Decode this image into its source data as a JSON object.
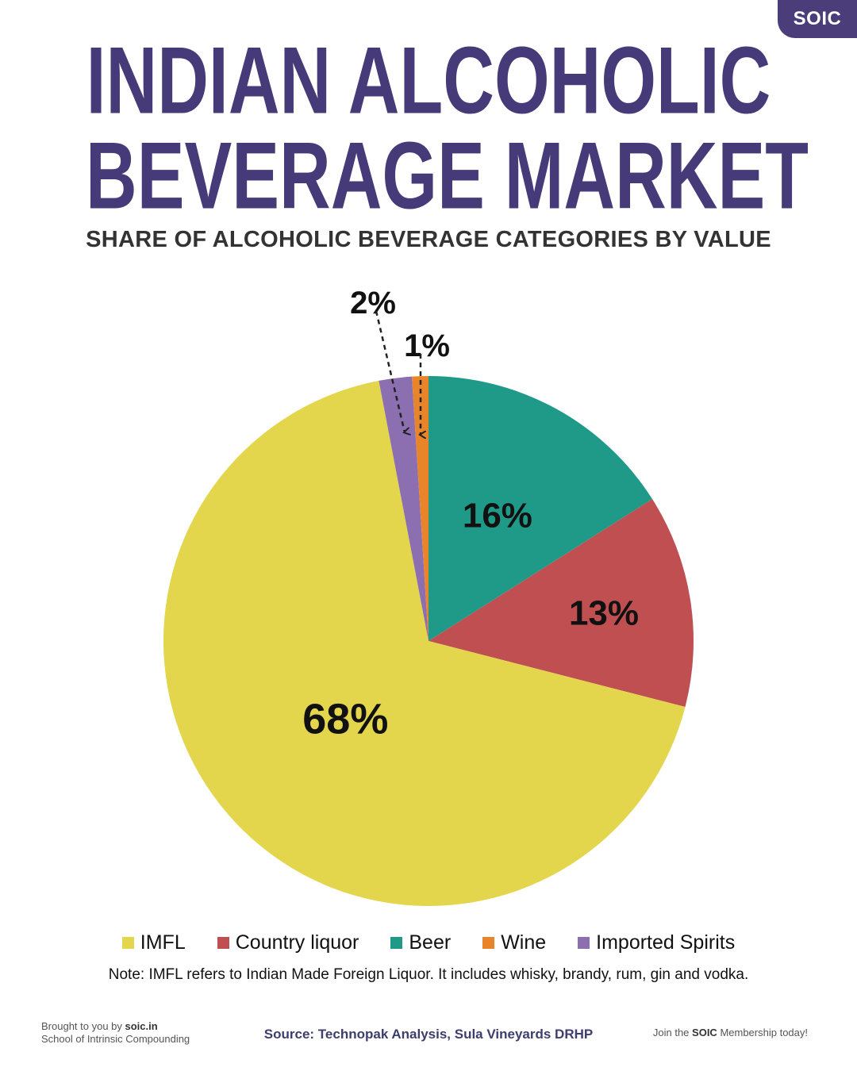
{
  "brand": {
    "tag": "SOIC"
  },
  "header": {
    "title_line1": "INDIAN ALCOHOLIC",
    "title_line2": "BEVERAGE MARKET",
    "subtitle": "SHARE OF ALCOHOLIC BEVERAGE CATEGORIES BY VALUE"
  },
  "chart_data": {
    "type": "pie",
    "title": "SHARE OF ALCOHOLIC BEVERAGE CATEGORIES BY VALUE",
    "categories": [
      "Beer",
      "Country liquor",
      "IMFL",
      "Imported Spirits",
      "Wine"
    ],
    "values": [
      16,
      13,
      68,
      2,
      1
    ],
    "labels": [
      "16%",
      "13%",
      "68%",
      "2%",
      "1%"
    ],
    "colors": [
      "#1f9a89",
      "#c04f52",
      "#e3d54c",
      "#8b6fb0",
      "#e8852a"
    ],
    "legend_position": "bottom"
  },
  "legend": {
    "items": [
      {
        "label": "IMFL",
        "color": "#e3d54c"
      },
      {
        "label": "Country liquor",
        "color": "#c04f52"
      },
      {
        "label": "Beer",
        "color": "#1f9a89"
      },
      {
        "label": "Wine",
        "color": "#e8852a"
      },
      {
        "label": "Imported Spirits",
        "color": "#8b6fb0"
      }
    ]
  },
  "note": "Note: IMFL refers to Indian Made Foreign Liquor. It includes whisky, brandy, rum, gin and vodka.",
  "footer": {
    "brought_prefix": "Brought to you by ",
    "brought_site": "soic.in",
    "org_name": "School of Intrinsic Compounding",
    "source": "Source: Technopak Analysis, Sula Vineyards DRHP",
    "join_prefix": "Join the ",
    "join_brand": "SOIC",
    "join_suffix": " Membership today!"
  }
}
